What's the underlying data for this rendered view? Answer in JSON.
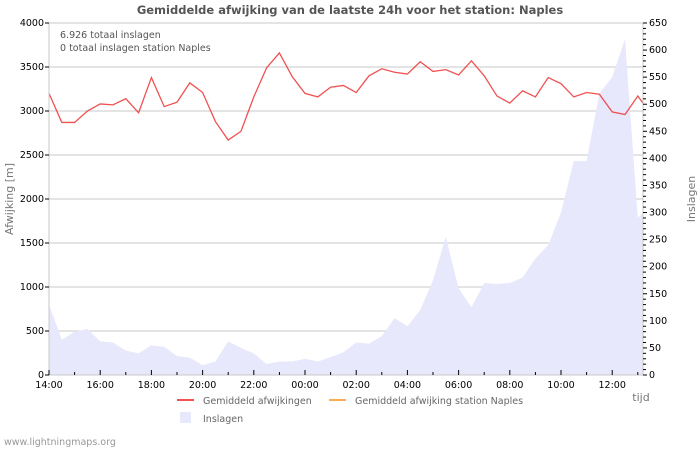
{
  "chart_data": {
    "type": "line",
    "title": "Gemiddelde afwijking van de laatste 24h voor het station: Naples",
    "info_lines": [
      "6.926 totaal inslagen",
      "0 totaal inslagen station Naples"
    ],
    "xlabel": "tijd",
    "ylabel_left": "Afwijking  [m]",
    "ylabel_right": "Inslagen",
    "ylim_left": [
      0,
      4000
    ],
    "ylim_right": [
      0,
      650
    ],
    "yticks_left": [
      0,
      500,
      1000,
      1500,
      2000,
      2500,
      3000,
      3500,
      4000
    ],
    "yticks_right": [
      0,
      50,
      100,
      150,
      200,
      250,
      300,
      350,
      400,
      450,
      500,
      550,
      600,
      650
    ],
    "xticks": [
      "14:00",
      "16:00",
      "18:00",
      "20:00",
      "22:00",
      "00:00",
      "02:00",
      "04:00",
      "06:00",
      "08:00",
      "10:00",
      "12:00"
    ],
    "grid": true,
    "legend_position": "bottom",
    "x": [
      "14:00",
      "14:30",
      "15:00",
      "15:30",
      "16:00",
      "16:30",
      "17:00",
      "17:30",
      "18:00",
      "18:30",
      "19:00",
      "19:30",
      "20:00",
      "20:30",
      "21:00",
      "21:30",
      "22:00",
      "22:30",
      "23:00",
      "23:30",
      "00:00",
      "00:30",
      "01:00",
      "01:30",
      "02:00",
      "02:30",
      "03:00",
      "03:30",
      "04:00",
      "04:30",
      "05:00",
      "05:30",
      "06:00",
      "06:30",
      "07:00",
      "07:30",
      "08:00",
      "08:30",
      "09:00",
      "09:30",
      "10:00",
      "10:30",
      "11:00",
      "11:30",
      "12:00",
      "12:30",
      "13:00",
      "13:15"
    ],
    "series": [
      {
        "name": "Gemiddeld afwijkingen",
        "color": "#ee3333",
        "axis": "left",
        "values": [
          3200,
          2870,
          2870,
          3000,
          3080,
          3070,
          3140,
          2980,
          3380,
          3050,
          3100,
          3320,
          3210,
          2880,
          2670,
          2770,
          3160,
          3490,
          3660,
          3390,
          3200,
          3160,
          3270,
          3290,
          3210,
          3400,
          3480,
          3440,
          3420,
          3560,
          3450,
          3470,
          3410,
          3570,
          3400,
          3170,
          3090,
          3230,
          3160,
          3380,
          3310,
          3160,
          3210,
          3190,
          2990,
          2960,
          3170,
          3090
        ]
      },
      {
        "name": "Gemiddeld afwijking station Naples",
        "color": "#ffaa55",
        "axis": "left",
        "values": []
      },
      {
        "name": "Inslagen",
        "color": "#e8e8fc",
        "axis": "right",
        "type": "area",
        "values": [
          130,
          65,
          80,
          85,
          62,
          60,
          45,
          40,
          55,
          52,
          35,
          32,
          18,
          25,
          62,
          50,
          40,
          20,
          25,
          25,
          30,
          25,
          33,
          42,
          60,
          58,
          72,
          105,
          90,
          120,
          175,
          255,
          160,
          125,
          170,
          168,
          170,
          180,
          215,
          240,
          300,
          395,
          395,
          520,
          550,
          620,
          290,
          300
        ]
      }
    ]
  },
  "footer": {
    "credit": "www.lightningmaps.org"
  }
}
